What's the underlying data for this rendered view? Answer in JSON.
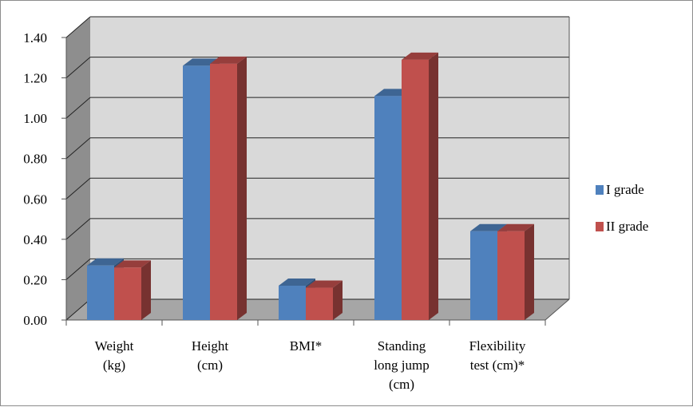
{
  "chart_data": {
    "type": "bar",
    "categories": [
      [
        "Weight",
        "(kg)"
      ],
      [
        "Height",
        "(cm)"
      ],
      [
        "BMI*"
      ],
      [
        "Standing",
        "long jump",
        "(cm)"
      ],
      [
        "Flexibility",
        "test (cm)*"
      ]
    ],
    "series": [
      {
        "name": "I grade",
        "values": [
          0.27,
          1.26,
          0.17,
          1.11,
          0.44
        ],
        "color": "#4f81bd"
      },
      {
        "name": "II grade",
        "values": [
          0.26,
          1.27,
          0.16,
          1.29,
          0.44
        ],
        "color": "#c0504d"
      }
    ],
    "yticks": [
      "0.00",
      "0.20",
      "0.40",
      "0.60",
      "0.80",
      "1.00",
      "1.20",
      "1.40"
    ],
    "ylim": [
      0,
      1.4
    ],
    "grid": true,
    "legend_position": "right",
    "style": "3d-clustered-column"
  }
}
